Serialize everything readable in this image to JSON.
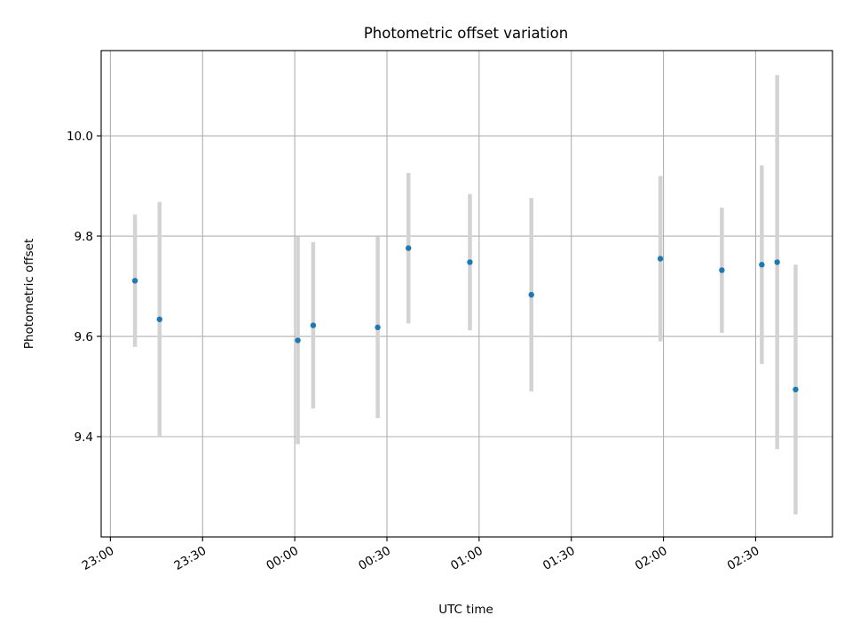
{
  "chart_data": {
    "type": "scatter",
    "title": "Photometric offset variation",
    "xlabel": "UTC time",
    "ylabel": "Photometric offset",
    "xlim": [
      "22:57",
      "02:55"
    ],
    "ylim": [
      9.2,
      10.17
    ],
    "x_ticks": [
      "23:00",
      "23:30",
      "00:00",
      "00:30",
      "01:00",
      "01:30",
      "02:00",
      "02:30"
    ],
    "y_ticks": [
      "9.4",
      "9.6",
      "9.8",
      "10.0"
    ],
    "grid": true,
    "marker_color": "#1f77b4",
    "errorbar_color": "#d3d3d3",
    "points": [
      {
        "x": "23:08",
        "y": 9.711,
        "err": 0.132
      },
      {
        "x": "23:16",
        "y": 9.634,
        "err": 0.234
      },
      {
        "x": "00:01",
        "y": 9.592,
        "err": 0.207
      },
      {
        "x": "00:06",
        "y": 9.622,
        "err": 0.166
      },
      {
        "x": "00:27",
        "y": 9.618,
        "err": 0.181
      },
      {
        "x": "00:37",
        "y": 9.776,
        "err": 0.15
      },
      {
        "x": "00:57",
        "y": 9.748,
        "err": 0.136
      },
      {
        "x": "01:17",
        "y": 9.683,
        "err": 0.193
      },
      {
        "x": "01:59",
        "y": 9.755,
        "err": 0.165
      },
      {
        "x": "02:19",
        "y": 9.732,
        "err": 0.125
      },
      {
        "x": "02:32",
        "y": 9.743,
        "err": 0.198
      },
      {
        "x": "02:37",
        "y": 9.748,
        "err": 0.373
      },
      {
        "x": "02:43",
        "y": 9.494,
        "err": 0.249
      }
    ]
  }
}
